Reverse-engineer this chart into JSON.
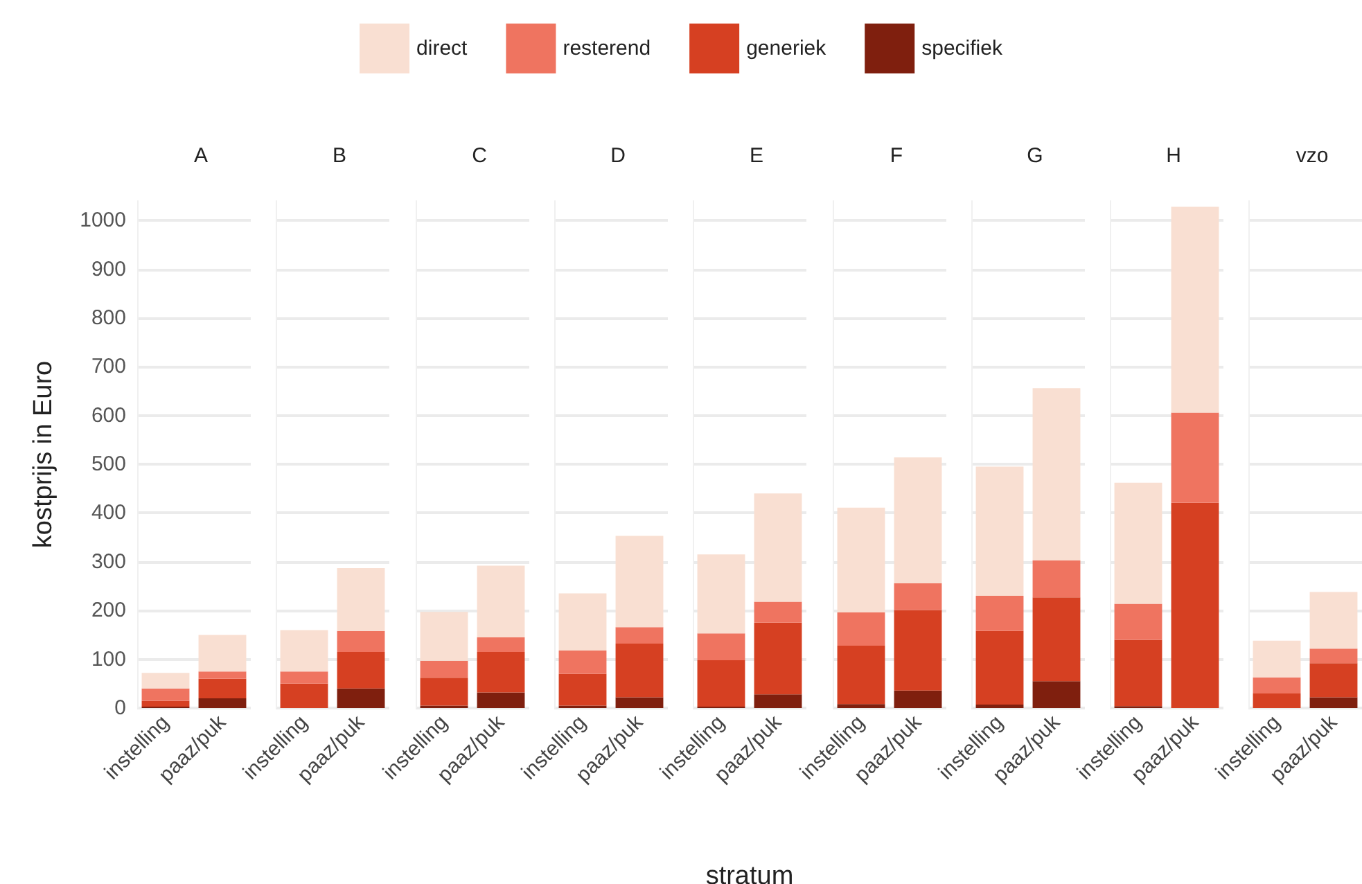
{
  "chart_data": [
    {
      "type": "bar",
      "title": "A",
      "ylabel": "kostprijs in Euro",
      "legend": "top",
      "stacked": true,
      "grid": "y",
      "categories": [
        "instelling",
        "paaz/puk"
      ],
      "ylim": [
        0,
        1040
      ],
      "yticks": [
        0,
        100,
        200,
        300,
        400,
        500,
        600,
        700,
        800,
        900,
        1000
      ],
      "series": [
        {
          "name": "specifiek",
          "color": "#7f1f0e",
          "values": [
            3,
            20
          ]
        },
        {
          "name": "generiek",
          "color": "#d64022",
          "values": [
            12,
            40
          ]
        },
        {
          "name": "resterend",
          "color": "#ef7460",
          "values": [
            25,
            15
          ]
        },
        {
          "name": "direct",
          "color": "#f9dfd2",
          "values": [
            32,
            75
          ]
        }
      ]
    },
    {
      "type": "bar",
      "title": "B",
      "stacked": true,
      "grid": "y",
      "tick_labels": "x",
      "categories": [
        "instelling",
        "paaz/puk"
      ],
      "ylim": [
        0,
        1040
      ],
      "yticks": [
        0,
        100,
        200,
        300,
        400,
        500,
        600,
        700,
        800,
        900,
        1000
      ],
      "series": [
        {
          "color": "#7f1f0e",
          "values": [
            0,
            40
          ]
        },
        {
          "color": "#d64022",
          "values": [
            50,
            75
          ]
        },
        {
          "color": "#ef7460",
          "values": [
            25,
            43
          ]
        },
        {
          "color": "#f9dfd2",
          "values": [
            85,
            129
          ]
        }
      ]
    },
    {
      "type": "bar",
      "title": "C",
      "stacked": true,
      "grid": "y",
      "tick_labels": "x",
      "categories": [
        "instelling",
        "paaz/puk"
      ],
      "ylim": [
        0,
        1040
      ],
      "yticks": [
        0,
        100,
        200,
        300,
        400,
        500,
        600,
        700,
        800,
        900,
        1000
      ],
      "series": [
        {
          "color": "#7f1f0e",
          "values": [
            5,
            32
          ]
        },
        {
          "color": "#d64022",
          "values": [
            57,
            83
          ]
        },
        {
          "color": "#ef7460",
          "values": [
            35,
            30
          ]
        },
        {
          "color": "#f9dfd2",
          "values": [
            100,
            147
          ]
        }
      ]
    },
    {
      "type": "bar",
      "title": "D",
      "stacked": true,
      "grid": "y",
      "tick_labels": "x",
      "categories": [
        "instelling",
        "paaz/puk"
      ],
      "ylim": [
        0,
        1040
      ],
      "yticks": [
        0,
        100,
        200,
        300,
        400,
        500,
        600,
        700,
        800,
        900,
        1000
      ],
      "series": [
        {
          "color": "#7f1f0e",
          "values": [
            5,
            22
          ]
        },
        {
          "color": "#d64022",
          "values": [
            65,
            110
          ]
        },
        {
          "color": "#ef7460",
          "values": [
            48,
            34
          ]
        },
        {
          "color": "#f9dfd2",
          "values": [
            117,
            187
          ]
        }
      ]
    },
    {
      "type": "bar",
      "title": "E",
      "xlabel": "stratum",
      "stacked": true,
      "grid": "y",
      "tick_labels": "x",
      "categories": [
        "instelling",
        "paaz/puk"
      ],
      "ylim": [
        0,
        1040
      ],
      "yticks": [
        0,
        100,
        200,
        300,
        400,
        500,
        600,
        700,
        800,
        900,
        1000
      ],
      "series": [
        {
          "color": "#7f1f0e",
          "values": [
            3,
            28
          ]
        },
        {
          "color": "#d64022",
          "values": [
            95,
            147
          ]
        },
        {
          "color": "#ef7460",
          "values": [
            55,
            43
          ]
        },
        {
          "color": "#f9dfd2",
          "values": [
            162,
            222
          ]
        }
      ]
    },
    {
      "type": "bar",
      "title": "F",
      "stacked": true,
      "grid": "y",
      "tick_labels": "x",
      "categories": [
        "instelling",
        "paaz/puk"
      ],
      "ylim": [
        0,
        1040
      ],
      "yticks": [
        0,
        100,
        200,
        300,
        400,
        500,
        600,
        700,
        800,
        900,
        1000
      ],
      "series": [
        {
          "color": "#7f1f0e",
          "values": [
            8,
            36
          ]
        },
        {
          "color": "#d64022",
          "values": [
            120,
            165
          ]
        },
        {
          "color": "#ef7460",
          "values": [
            68,
            55
          ]
        },
        {
          "color": "#f9dfd2",
          "values": [
            215,
            258
          ]
        }
      ]
    },
    {
      "type": "bar",
      "title": "G",
      "stacked": true,
      "grid": "y",
      "tick_labels": "x",
      "categories": [
        "instelling",
        "paaz/puk"
      ],
      "ylim": [
        0,
        1040
      ],
      "yticks": [
        0,
        100,
        200,
        300,
        400,
        500,
        600,
        700,
        800,
        900,
        1000
      ],
      "series": [
        {
          "color": "#7f1f0e",
          "values": [
            7,
            55
          ]
        },
        {
          "color": "#d64022",
          "values": [
            151,
            172
          ]
        },
        {
          "color": "#ef7460",
          "values": [
            72,
            76
          ]
        },
        {
          "color": "#f9dfd2",
          "values": [
            265,
            353
          ]
        }
      ]
    },
    {
      "type": "bar",
      "title": "H",
      "stacked": true,
      "grid": "y",
      "tick_labels": "x",
      "categories": [
        "instelling",
        "paaz/puk"
      ],
      "ylim": [
        0,
        1040
      ],
      "yticks": [
        0,
        100,
        200,
        300,
        400,
        500,
        600,
        700,
        800,
        900,
        1000
      ],
      "series": [
        {
          "color": "#7f1f0e",
          "values": [
            4,
            0
          ]
        },
        {
          "color": "#d64022",
          "values": [
            136,
            421
          ]
        },
        {
          "color": "#ef7460",
          "values": [
            74,
            185
          ]
        },
        {
          "color": "#f9dfd2",
          "values": [
            248,
            422
          ]
        }
      ]
    },
    {
      "type": "bar",
      "title": "vzo",
      "stacked": true,
      "grid": "y",
      "tick_labels": "x",
      "categories": [
        "instelling",
        "paaz/puk"
      ],
      "ylim": [
        0,
        1040
      ],
      "yticks": [
        0,
        100,
        200,
        300,
        400,
        500,
        600,
        700,
        800,
        900,
        1000
      ],
      "series": [
        {
          "color": "#7f1f0e",
          "values": [
            0,
            22
          ]
        },
        {
          "color": "#d64022",
          "values": [
            30,
            70
          ]
        },
        {
          "color": "#ef7460",
          "values": [
            33,
            30
          ]
        },
        {
          "color": "#f9dfd2",
          "values": [
            75,
            116
          ]
        }
      ]
    }
  ]
}
